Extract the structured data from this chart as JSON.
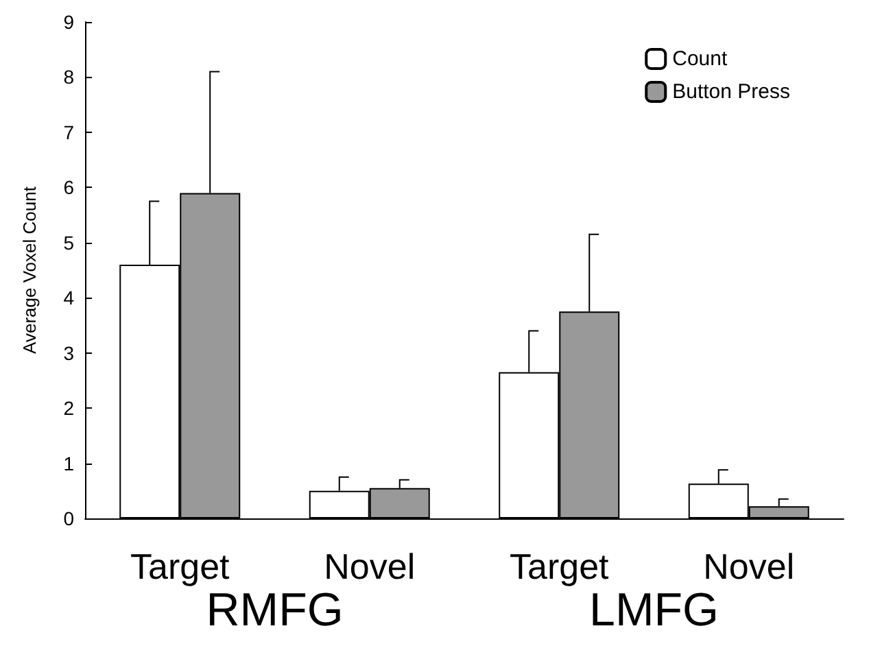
{
  "chart_data": {
    "type": "bar",
    "ylabel": "Average Voxel Count",
    "categories": [
      "Target",
      "Novel",
      "Target",
      "Novel"
    ],
    "series": [
      {
        "name": "Count",
        "color": "#ffffff",
        "values": [
          4.6,
          0.5,
          2.65,
          0.63
        ],
        "errors": [
          [
            4.6,
            5.75
          ],
          [
            0.5,
            0.75
          ],
          [
            2.65,
            3.4
          ],
          [
            0.63,
            0.88
          ]
        ]
      },
      {
        "name": "Button Press",
        "color": "#999999",
        "values": [
          5.9,
          0.55,
          3.75,
          0.22
        ],
        "errors": [
          [
            5.9,
            8.1
          ],
          [
            0.55,
            0.7
          ],
          [
            3.75,
            5.15
          ],
          [
            0.22,
            0.35
          ]
        ]
      }
    ],
    "annotations": [
      "RMFG",
      "LMFG"
    ],
    "ylim": [
      0,
      9
    ],
    "yticks": [
      0,
      1,
      2,
      3,
      4,
      5,
      6,
      7,
      8,
      9
    ],
    "grid": false,
    "legend": "top right"
  }
}
